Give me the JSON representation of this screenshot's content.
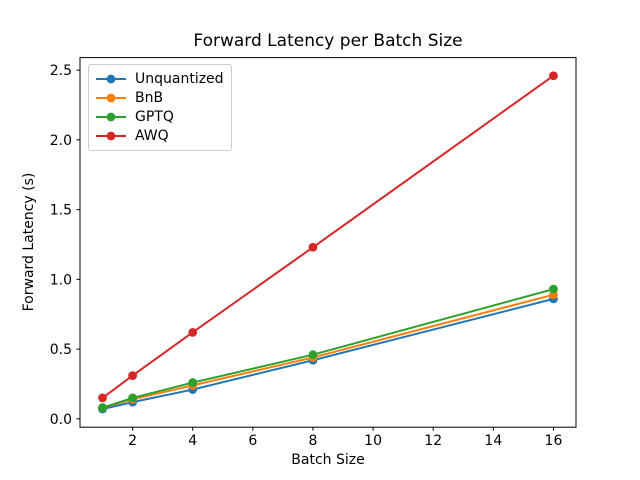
{
  "chart_data": {
    "type": "line",
    "title": "Forward Latency per Batch Size",
    "xlabel": "Batch Size",
    "ylabel": "Forward Latency (s)",
    "x": [
      1,
      2,
      4,
      8,
      16
    ],
    "series": [
      {
        "name": "Unquantized",
        "color": "#1f77b4",
        "values": [
          0.07,
          0.12,
          0.21,
          0.42,
          0.86
        ]
      },
      {
        "name": "BnB",
        "color": "#ff7f0e",
        "values": [
          0.08,
          0.14,
          0.24,
          0.44,
          0.89
        ]
      },
      {
        "name": "GPTQ",
        "color": "#2ca02c",
        "values": [
          0.08,
          0.15,
          0.26,
          0.46,
          0.93
        ]
      },
      {
        "name": "AWQ",
        "color": "#d62728",
        "values": [
          0.15,
          0.31,
          0.62,
          1.23,
          2.46
        ]
      }
    ],
    "xlim": [
      0.25,
      16.75
    ],
    "ylim": [
      -0.06,
      2.59
    ],
    "xticks": [
      2,
      4,
      6,
      8,
      10,
      12,
      14,
      16
    ],
    "yticks": [
      0.0,
      0.5,
      1.0,
      1.5,
      2.0,
      2.5
    ],
    "legend_position": "upper left",
    "grid": false,
    "marker": "circle",
    "axis_color": "#000000",
    "background_color": "#ffffff"
  }
}
